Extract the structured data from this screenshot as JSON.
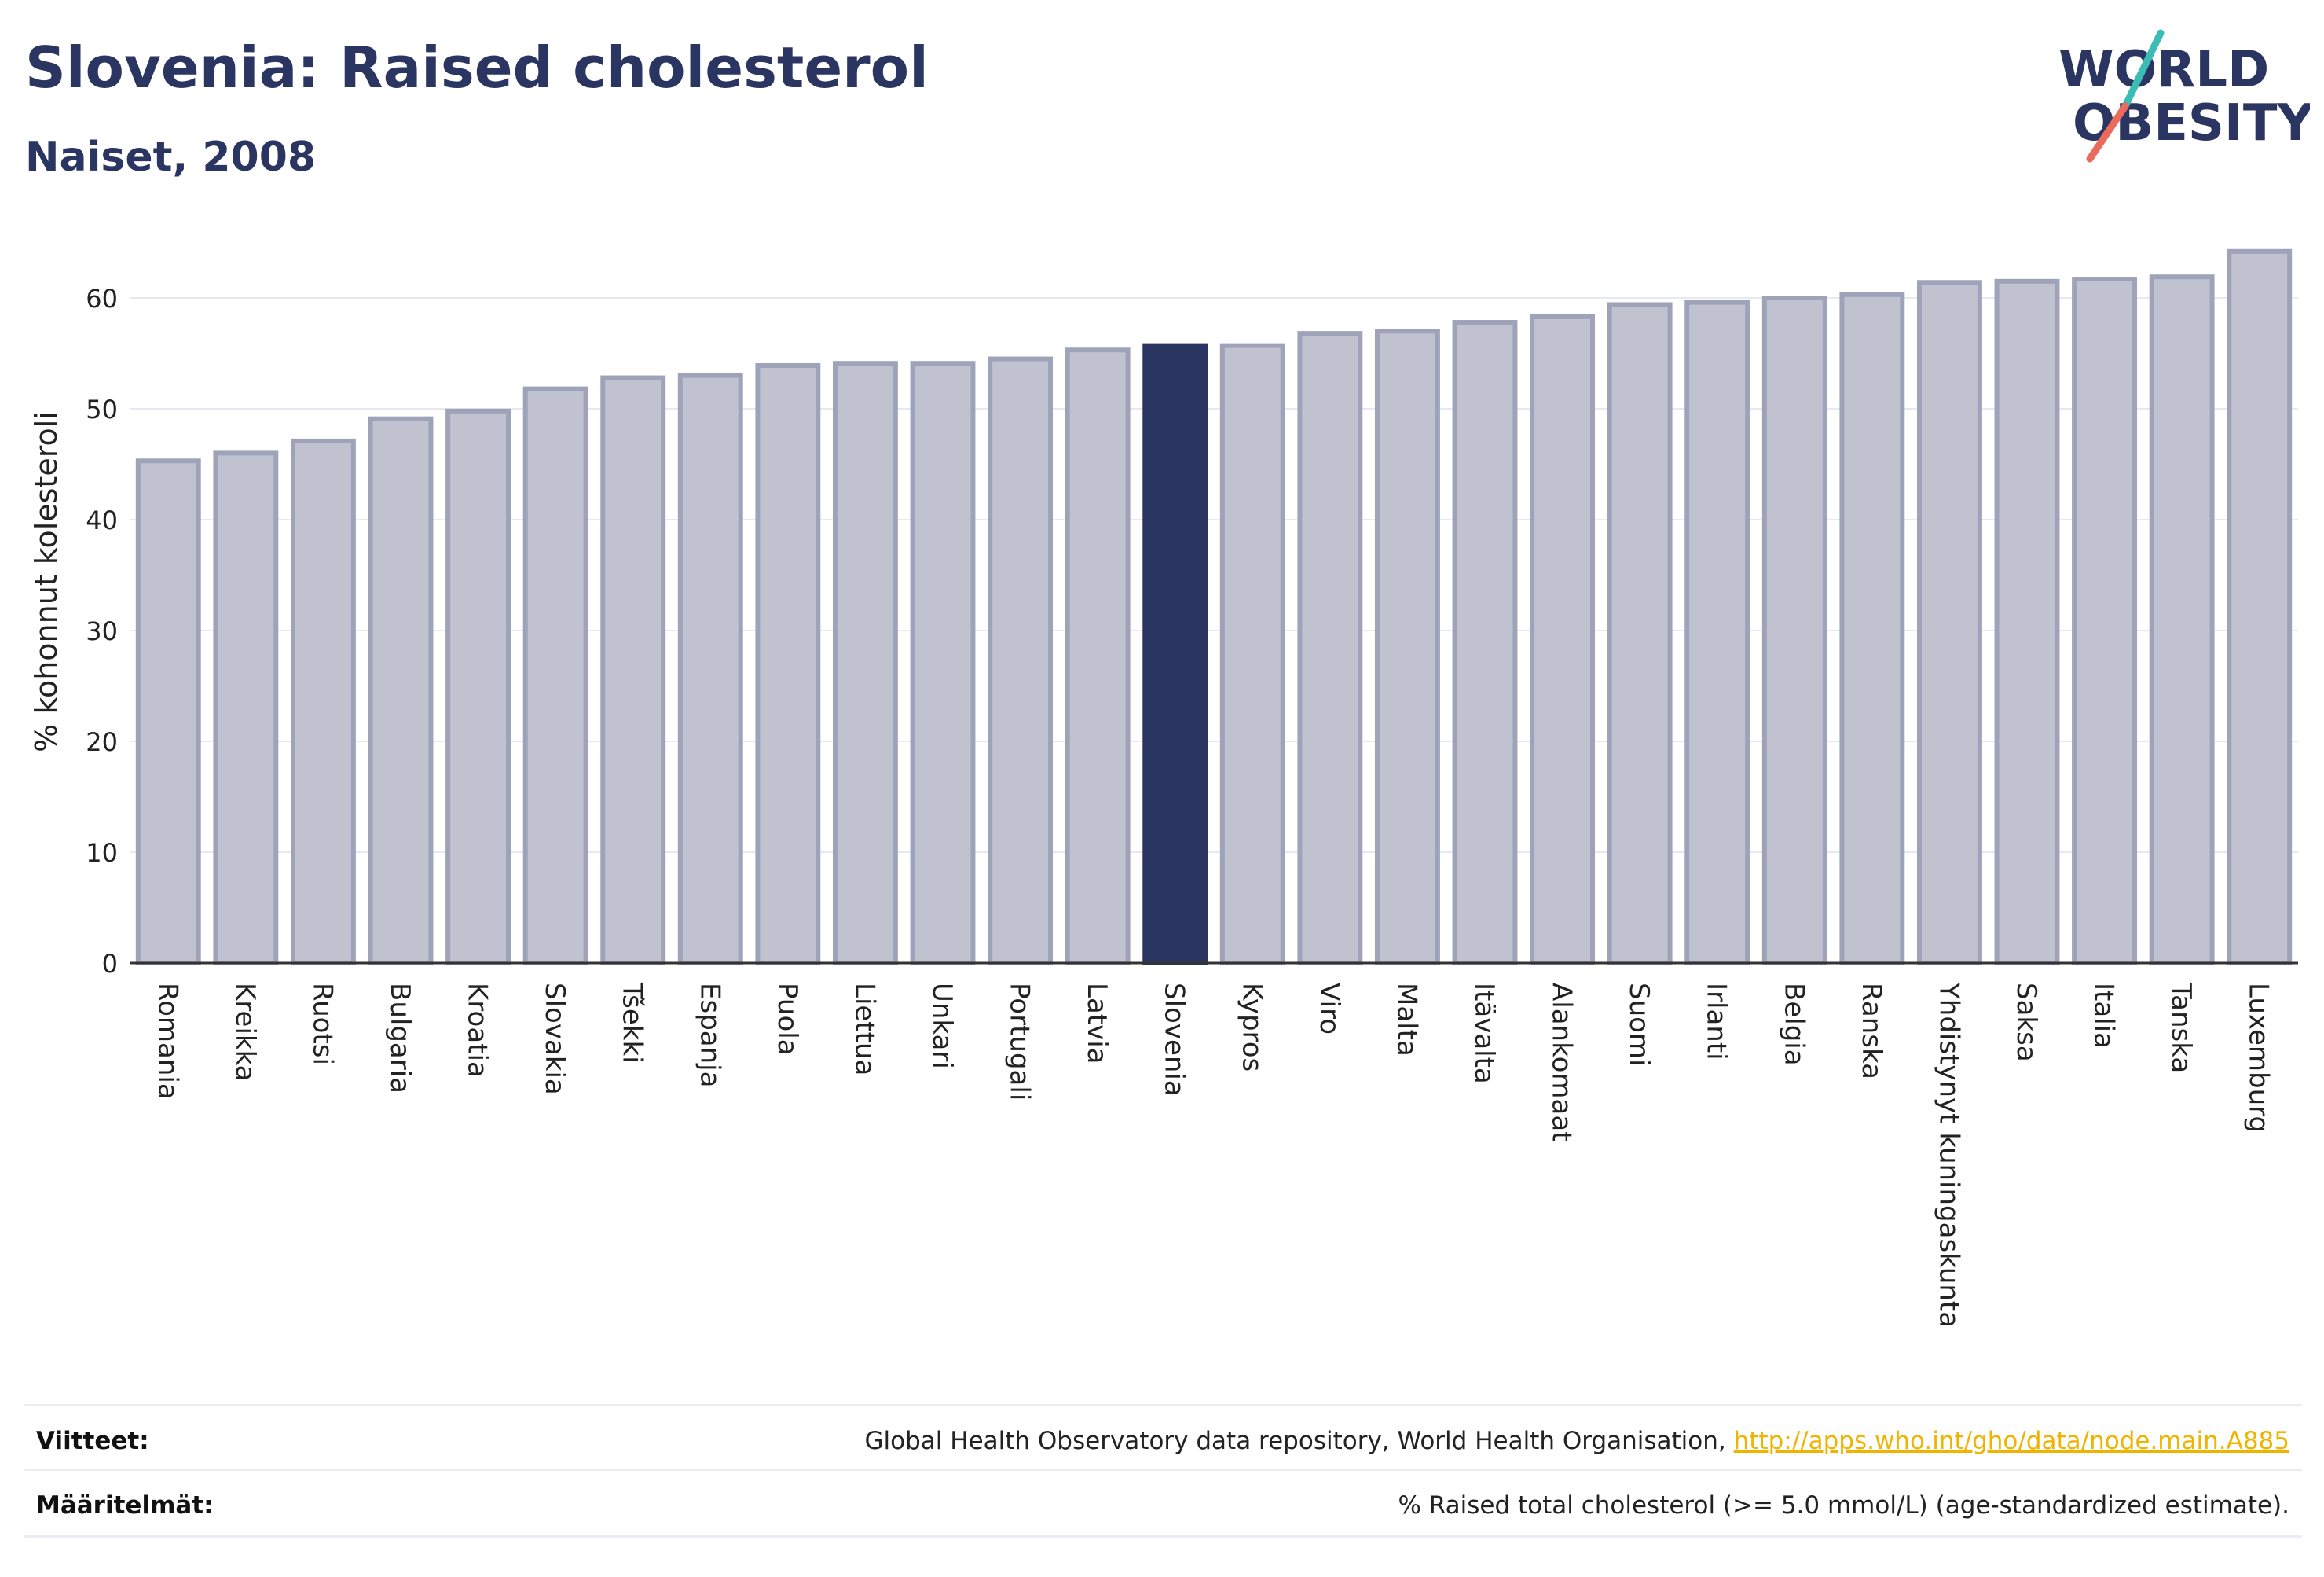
{
  "header": {
    "title": "Slovenia: Raised cholesterol",
    "subtitle": "Naiset, 2008"
  },
  "logo": {
    "line1": "WORLD",
    "line2": "OBESITY",
    "accent_teal": "#3bbdb6",
    "accent_coral": "#ec6a5c"
  },
  "chart_data": {
    "type": "bar",
    "title": "Slovenia: Raised cholesterol",
    "subtitle": "Naiset, 2008",
    "ylabel": "% kohonnut kolesteroli",
    "xlabel": "",
    "ylim": [
      0,
      65
    ],
    "yticks": [
      0,
      10,
      20,
      30,
      40,
      50,
      60
    ],
    "grid": true,
    "highlight": "Slovenia",
    "colors": {
      "bar": "#c0c2d0",
      "bar_border": "#9fa3b9",
      "highlight": "#2b3561"
    },
    "categories": [
      "Romania",
      "Kreikka",
      "Ruotsi",
      "Bulgaria",
      "Kroatia",
      "Slovakia",
      "Tšekki",
      "Espanja",
      "Puola",
      "Liettua",
      "Unkari",
      "Portugali",
      "Latvia",
      "Slovenia",
      "Kypros",
      "Viro",
      "Malta",
      "Itävalta",
      "Alankomaat",
      "Suomi",
      "Irlanti",
      "Belgia",
      "Ranska",
      "Yhdistynyt kuningaskunta",
      "Saksa",
      "Italia",
      "Tanska",
      "Luxemburg"
    ],
    "values": [
      45.3,
      46.0,
      47.1,
      49.1,
      49.8,
      51.8,
      52.8,
      53.0,
      53.9,
      54.1,
      54.1,
      54.5,
      55.3,
      55.7,
      55.7,
      56.8,
      57.0,
      57.8,
      58.3,
      59.4,
      59.6,
      60.0,
      60.3,
      61.4,
      61.5,
      61.7,
      61.9,
      64.2
    ]
  },
  "footer": {
    "sources_label": "Viitteet:",
    "sources_text": "Global Health Observatory data repository, World Health Organisation,",
    "sources_link": "http://apps.who.int/gho/data/node.main.A885",
    "definitions_label": "Määritelmät:",
    "definitions_text": "% Raised total cholesterol (>= 5.0 mmol/L) (age-standardized estimate)."
  }
}
